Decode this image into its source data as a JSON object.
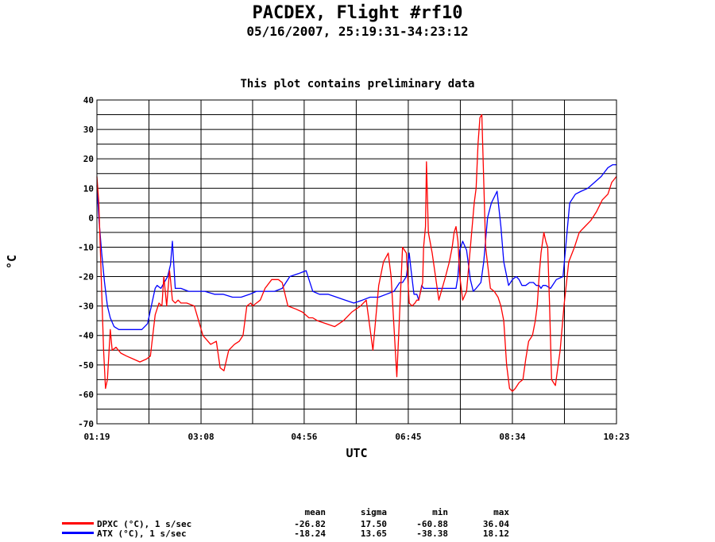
{
  "header": {
    "title": "PACDEX, Flight #rf10",
    "subtitle": "05/16/2007, 25:19:31-34:23:12",
    "note": "This plot contains preliminary data"
  },
  "stats": {
    "headers": [
      "mean",
      "sigma",
      "min",
      "max"
    ],
    "rows": [
      {
        "label": "DPXC (°C), 1 s/sec",
        "color": "#ff0000",
        "values": [
          "-26.82",
          "17.50",
          "-60.88",
          "36.04"
        ]
      },
      {
        "label": "ATX (°C), 1 s/sec",
        "color": "#0000ff",
        "values": [
          "-18.24",
          "13.65",
          "-38.38",
          "18.12"
        ]
      }
    ]
  },
  "chart_data": {
    "type": "line",
    "title": "This plot contains preliminary data",
    "xlabel": "UTC",
    "ylabel": "°C",
    "xlim": [
      "01:19",
      "10:23"
    ],
    "ylim": [
      -70,
      40
    ],
    "x_tick_labels": [
      "01:19",
      "03:08",
      "04:56",
      "06:45",
      "08:34",
      "10:23"
    ],
    "y_tick_labels": [
      "40",
      "30",
      "20",
      "10",
      "0",
      "-10",
      "-20",
      "-30",
      "-40",
      "-50",
      "-60",
      "-70"
    ],
    "grid": true,
    "series": [
      {
        "name": "DPXC (°C), 1 s/sec",
        "color": "#ff0000",
        "x": [
          "01:19",
          "01:21",
          "01:23",
          "01:26",
          "01:28",
          "01:30",
          "01:33",
          "01:35",
          "01:39",
          "01:44",
          "01:50",
          "01:57",
          "02:04",
          "02:11",
          "02:15",
          "02:20",
          "02:24",
          "02:27",
          "02:29",
          "02:32",
          "02:35",
          "02:36",
          "02:38",
          "02:41",
          "02:44",
          "02:47",
          "02:53",
          "03:01",
          "03:10",
          "03:18",
          "03:24",
          "03:28",
          "03:32",
          "03:37",
          "03:43",
          "03:48",
          "03:52",
          "03:56",
          "04:00",
          "04:02",
          "04:06",
          "04:10",
          "04:15",
          "04:22",
          "04:29",
          "04:33",
          "04:39",
          "04:47",
          "04:54",
          "05:01",
          "05:05",
          "05:10",
          "05:19",
          "05:28",
          "05:37",
          "05:46",
          "05:55",
          "06:01",
          "06:08",
          "06:14",
          "06:19",
          "06:24",
          "06:27",
          "06:33",
          "06:39",
          "06:43",
          "06:46",
          "06:49",
          "06:52",
          "06:54",
          "06:56",
          "06:58",
          "07:00",
          "07:01",
          "07:03",
          "07:04",
          "07:06",
          "07:10",
          "07:17",
          "07:24",
          "07:28",
          "07:31",
          "07:33",
          "07:35",
          "07:37",
          "07:39",
          "07:42",
          "07:46",
          "07:50",
          "07:54",
          "07:56",
          "07:58",
          "08:00",
          "08:02",
          "08:06",
          "08:11",
          "08:15",
          "08:19",
          "08:22",
          "08:25",
          "08:28",
          "08:31",
          "08:34",
          "08:37",
          "08:41",
          "08:45",
          "08:48",
          "08:51",
          "08:55",
          "08:58",
          "09:00",
          "09:02",
          "09:04",
          "09:07",
          "09:09",
          "09:11",
          "09:13",
          "09:15",
          "09:19",
          "09:24",
          "09:28",
          "09:33",
          "09:39",
          "09:44",
          "09:50",
          "09:56",
          "10:02",
          "10:08",
          "10:14",
          "10:18",
          "10:23"
        ],
        "y": [
          14,
          5,
          -15,
          -45,
          -58,
          -55,
          -38,
          -45,
          -44,
          -46,
          -47,
          -48,
          -49,
          -48,
          -47,
          -33,
          -29,
          -30,
          -20,
          -30,
          -18,
          -21,
          -28,
          -29,
          -28,
          -29,
          -29,
          -30,
          -40,
          -43,
          -42,
          -51,
          -52,
          -45,
          -43,
          -42,
          -40,
          -30,
          -29,
          -30,
          -29,
          -28,
          -24,
          -21,
          -21,
          -22,
          -30,
          -31,
          -32,
          -34,
          -34,
          -35,
          -36,
          -37,
          -35,
          -32,
          -30,
          -28,
          -45,
          -23,
          -15,
          -12,
          -20,
          -54,
          -10,
          -12,
          -29,
          -30,
          -29,
          -28,
          -28,
          -25,
          -22,
          -10,
          -3,
          19,
          -5,
          -12,
          -28,
          -20,
          -15,
          -10,
          -5,
          -3,
          -8,
          -20,
          -28,
          -25,
          -10,
          5,
          10,
          25,
          34,
          35,
          -10,
          -24,
          -25,
          -27,
          -30,
          -35,
          -50,
          -58,
          -59,
          -58,
          -56,
          -55,
          -48,
          -42,
          -40,
          -35,
          -30,
          -20,
          -12,
          -5,
          -8,
          -10,
          -30,
          -55,
          -57,
          -45,
          -30,
          -15,
          -10,
          -5,
          -3,
          -1,
          2,
          6,
          8,
          12,
          14
        ]
      },
      {
        "name": "ATX (°C), 1 s/sec",
        "color": "#0000ff",
        "x": [
          "01:19",
          "01:21",
          "01:24",
          "01:27",
          "01:30",
          "01:33",
          "01:37",
          "01:42",
          "01:50",
          "01:58",
          "02:06",
          "02:12",
          "02:20",
          "02:22",
          "02:26",
          "02:33",
          "02:36",
          "02:38",
          "02:41",
          "02:47",
          "02:55",
          "03:03",
          "03:12",
          "03:22",
          "03:31",
          "03:41",
          "03:50",
          "03:59",
          "04:06",
          "04:16",
          "04:25",
          "04:33",
          "04:41",
          "04:50",
          "04:58",
          "05:05",
          "05:12",
          "05:21",
          "05:30",
          "05:39",
          "05:48",
          "05:57",
          "06:05",
          "06:14",
          "06:22",
          "06:30",
          "06:36",
          "06:39",
          "06:43",
          "06:46",
          "06:48",
          "06:51",
          "06:54",
          "06:56",
          "06:59",
          "07:01",
          "07:04",
          "07:08",
          "07:14",
          "07:20",
          "07:26",
          "07:32",
          "07:35",
          "07:37",
          "07:39",
          "07:42",
          "07:46",
          "07:50",
          "07:53",
          "07:56",
          "08:01",
          "08:04",
          "08:08",
          "08:12",
          "08:18",
          "08:22",
          "08:25",
          "08:30",
          "08:34",
          "08:38",
          "08:41",
          "08:44",
          "08:48",
          "08:52",
          "08:56",
          "08:59",
          "09:02",
          "09:04",
          "09:06",
          "09:09",
          "09:14",
          "09:20",
          "09:27",
          "09:34",
          "09:40",
          "09:46",
          "09:53",
          "10:00",
          "10:07",
          "10:14",
          "10:19",
          "10:23"
        ],
        "y": [
          11,
          0,
          -12,
          -22,
          -30,
          -34,
          -37,
          -38,
          -38,
          -38,
          -38,
          -36,
          -24,
          -23,
          -24,
          -20,
          -16,
          -8,
          -24,
          -24,
          -25,
          -25,
          -25,
          -26,
          -26,
          -27,
          -27,
          -26,
          -25,
          -25,
          -25,
          -24,
          -20,
          -19,
          -18,
          -25,
          -26,
          -26,
          -27,
          -28,
          -29,
          -28,
          -27,
          -27,
          -26,
          -25,
          -22,
          -22,
          -20,
          -12,
          -18,
          -26,
          -26,
          -28,
          -23,
          -24,
          -24,
          -24,
          -24,
          -24,
          -24,
          -24,
          -24,
          -20,
          -11,
          -8,
          -11,
          -21,
          -25,
          -24,
          -22,
          -15,
          0,
          5,
          9,
          -3,
          -15,
          -23,
          -21,
          -20,
          -21,
          -23,
          -23,
          -22,
          -22,
          -23,
          -23,
          -24,
          -23,
          -23,
          -24,
          -21,
          -20,
          5,
          8,
          9,
          10,
          12,
          14,
          17,
          18,
          18
        ]
      }
    ]
  }
}
